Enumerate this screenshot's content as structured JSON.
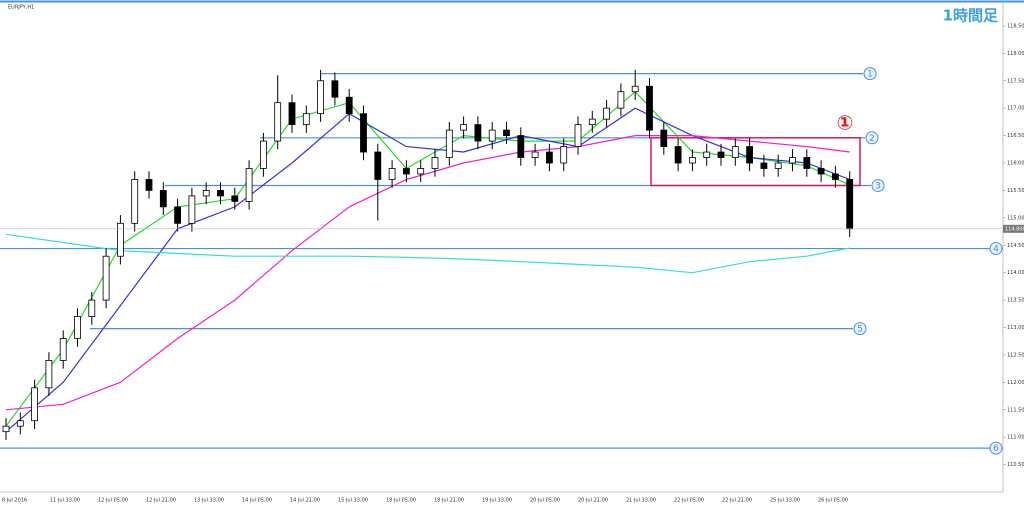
{
  "header": "EURJPY,H1",
  "title": "1時間足",
  "chart_data": {
    "type": "candlestick",
    "open": [
      111.1,
      111.2,
      111.3,
      111.9,
      112.4,
      112.8,
      113.2,
      113.5,
      114.3,
      114.9,
      115.7,
      115.5,
      115.2,
      114.9,
      115.4,
      115.5,
      115.4,
      115.3,
      115.9,
      116.4,
      117.1,
      116.7,
      116.9,
      117.5,
      117.2,
      116.9,
      116.2,
      115.7,
      115.9,
      115.8,
      115.9,
      116.1,
      116.6,
      116.7,
      116.4,
      116.6,
      116.5,
      116.1,
      116.2,
      116.0,
      116.3,
      116.7,
      116.8,
      117.0,
      117.3,
      117.4,
      116.6,
      116.3,
      116.0,
      116.1,
      116.2,
      116.1,
      116.3,
      116.0,
      115.9,
      116.0,
      116.1,
      115.9,
      115.8,
      115.7
    ],
    "high": [
      111.35,
      111.45,
      112.05,
      112.55,
      112.95,
      113.35,
      113.65,
      114.45,
      115.05,
      115.85,
      115.85,
      115.65,
      115.35,
      115.55,
      115.65,
      115.65,
      115.55,
      116.05,
      116.55,
      117.6,
      117.25,
      117.05,
      117.7,
      117.65,
      117.35,
      117.05,
      116.35,
      116.05,
      116.05,
      116.05,
      116.25,
      116.75,
      116.85,
      116.85,
      116.75,
      116.75,
      116.65,
      116.35,
      116.35,
      116.45,
      116.85,
      116.95,
      117.15,
      117.45,
      117.7,
      117.55,
      116.75,
      116.45,
      116.25,
      116.35,
      116.35,
      116.45,
      116.45,
      116.15,
      116.15,
      116.25,
      116.25,
      116.05,
      115.95,
      115.85
    ],
    "low": [
      110.95,
      111.05,
      111.15,
      111.75,
      112.25,
      112.65,
      113.05,
      113.35,
      114.15,
      114.75,
      115.35,
      115.05,
      114.75,
      114.75,
      115.25,
      115.25,
      115.15,
      115.15,
      115.75,
      116.25,
      116.55,
      116.55,
      116.75,
      117.05,
      116.75,
      116.05,
      114.95,
      115.55,
      115.65,
      115.65,
      115.75,
      115.95,
      116.45,
      116.25,
      116.25,
      116.35,
      115.95,
      115.95,
      115.85,
      115.85,
      116.15,
      116.55,
      116.65,
      116.85,
      117.15,
      116.45,
      116.15,
      115.85,
      115.85,
      115.95,
      115.95,
      115.95,
      115.85,
      115.75,
      115.75,
      115.85,
      115.75,
      115.65,
      115.55,
      114.65
    ],
    "close": [
      111.2,
      111.3,
      111.9,
      112.4,
      112.8,
      113.2,
      113.5,
      114.3,
      114.9,
      115.7,
      115.5,
      115.2,
      114.9,
      115.4,
      115.5,
      115.4,
      115.3,
      115.9,
      116.4,
      117.1,
      116.7,
      116.9,
      117.5,
      117.2,
      116.9,
      116.2,
      115.7,
      115.9,
      115.8,
      115.9,
      116.1,
      116.6,
      116.7,
      116.4,
      116.6,
      116.5,
      116.1,
      116.2,
      116.0,
      116.3,
      116.7,
      116.8,
      117.0,
      117.3,
      117.4,
      116.6,
      116.3,
      116.0,
      116.1,
      116.2,
      116.1,
      116.3,
      116.0,
      115.9,
      116.0,
      116.1,
      115.9,
      115.8,
      115.7,
      114.8
    ],
    "ylim": [
      110.0,
      118.9
    ],
    "yticks": [
      {
        "value": 110.5,
        "label": "110.500"
      },
      {
        "value": 111,
        "label": "111.000"
      },
      {
        "value": 111.5,
        "label": "111.500"
      },
      {
        "value": 112,
        "label": "112.000"
      },
      {
        "value": 112.5,
        "label": "112.500"
      },
      {
        "value": 113,
        "label": "113.000"
      },
      {
        "value": 113.5,
        "label": "113.500"
      },
      {
        "value": 114,
        "label": "114.000"
      },
      {
        "value": 114.5,
        "label": "114.500"
      },
      {
        "value": 115,
        "label": "115.000"
      },
      {
        "value": 115.5,
        "label": "115.500"
      },
      {
        "value": 116,
        "label": "116.000"
      },
      {
        "value": 116.5,
        "label": "116.500"
      },
      {
        "value": 117,
        "label": "117.000"
      },
      {
        "value": 117.5,
        "label": "117.500"
      },
      {
        "value": 118,
        "label": "118.000"
      },
      {
        "value": 118.5,
        "label": "118.500"
      }
    ],
    "x_labels": [
      "8 Jul 2016",
      "11 Jul 13:00",
      "12 Jul 05:00",
      "12 Jul 21:00",
      "13 Jul 13:00",
      "14 Jul 05:00",
      "14 Jul 21:00",
      "15 Jul 13:00",
      "18 Jul 05:00",
      "18 Jul 21:00",
      "19 Jul 13:00",
      "20 Jul 05:00",
      "20 Jul 21:00",
      "21 Jul 13:00",
      "22 Jul 05:00",
      "22 Jul 21:00",
      "25 Jul 13:00",
      "26 Jul 05:00"
    ],
    "ma_x": [
      0,
      4,
      8,
      12,
      16,
      20,
      24,
      28,
      32,
      36,
      40,
      44,
      48,
      52,
      56,
      59
    ],
    "ma": [
      {
        "color": "#22dd22",
        "values": [
          111.2,
          112.6,
          114.5,
          115.2,
          115.35,
          116.8,
          117.1,
          115.9,
          116.5,
          116.4,
          116.4,
          117.3,
          116.2,
          116.1,
          115.95,
          115.6
        ]
      },
      {
        "color": "#3333dd",
        "values": [
          111.1,
          112.0,
          113.4,
          114.8,
          115.2,
          116.0,
          116.9,
          116.3,
          116.2,
          116.5,
          116.3,
          117.0,
          116.5,
          116.1,
          116.0,
          115.7
        ]
      },
      {
        "color": "#ee22cc",
        "values": [
          111.5,
          111.6,
          112.0,
          112.8,
          113.5,
          114.4,
          115.2,
          115.7,
          116.0,
          116.2,
          116.3,
          116.5,
          116.5,
          116.4,
          116.3,
          116.2
        ]
      },
      {
        "color": "#33dddd",
        "values": [
          114.7,
          114.55,
          114.4,
          114.35,
          114.3,
          114.3,
          114.3,
          114.28,
          114.25,
          114.2,
          114.15,
          114.1,
          114.0,
          114.2,
          114.3,
          114.45
        ]
      }
    ],
    "levels": [
      {
        "label": "1",
        "value": 117.63
      },
      {
        "label": "2",
        "value": 116.46
      },
      {
        "label": "3",
        "value": 115.59
      },
      {
        "label": "4",
        "value": 114.44
      },
      {
        "label": "5",
        "value": 112.98
      },
      {
        "label": "6",
        "value": 110.8
      }
    ],
    "level_color": "#4a90e2",
    "box": {
      "top": 116.46,
      "bottom": 115.59,
      "label": "①",
      "color": "#d81b60"
    },
    "last_price": 114.8,
    "last_price_label": "114.800"
  }
}
